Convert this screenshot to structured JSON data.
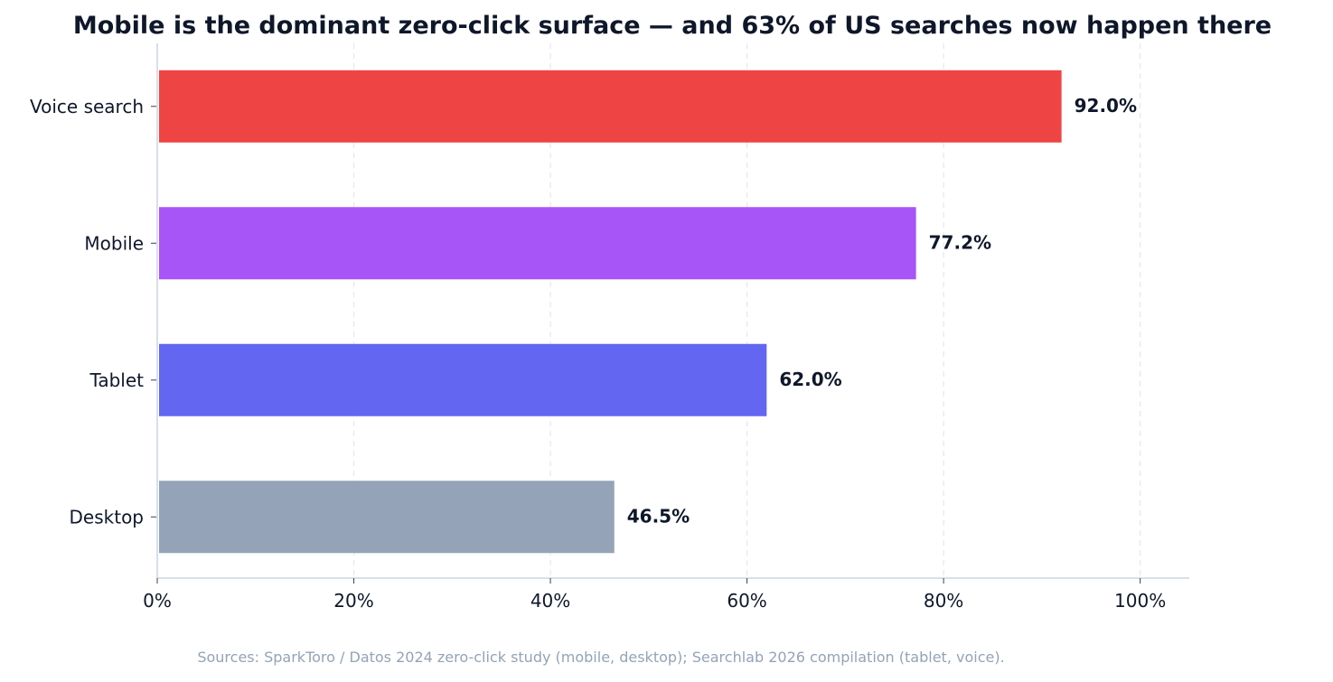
{
  "chart_data": {
    "type": "bar",
    "orientation": "horizontal",
    "title": "Mobile is the dominant zero-click surface — and 63% of US searches now happen there",
    "xlabel": "",
    "ylabel": "",
    "categories": [
      "Voice search",
      "Mobile",
      "Tablet",
      "Desktop"
    ],
    "values": [
      92.0,
      77.2,
      62.0,
      46.5
    ],
    "value_labels": [
      "92.0%",
      "77.2%",
      "62.0%",
      "46.5%"
    ],
    "colors": [
      "#ef4444",
      "#a855f7",
      "#6366f1",
      "#94a3b8"
    ],
    "xlim": [
      0,
      105
    ],
    "xticks": [
      0,
      20,
      40,
      60,
      80,
      100
    ],
    "xtick_labels": [
      "0%",
      "20%",
      "40%",
      "60%",
      "80%",
      "100%"
    ],
    "grid": "vertical-dashed",
    "legend": "none",
    "source_note": "Sources: SparkToro / Datos 2024 zero-click study (mobile, desktop); Searchlab 2026 compilation (tablet, voice)."
  }
}
